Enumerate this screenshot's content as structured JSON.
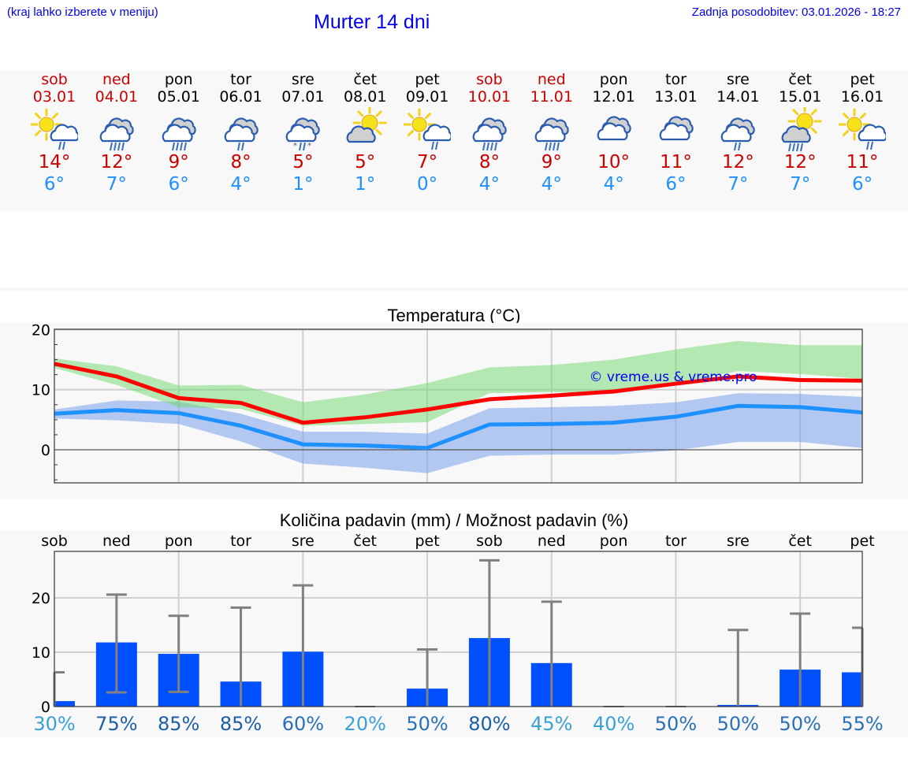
{
  "header": {
    "menu_hint": "(kraj lahko izberete v meniju)",
    "title": "Murter 14 dni",
    "last_update": "Zadnja posodobitev: 03.01.2026 - 18:27"
  },
  "colors": {
    "link_blue": "#0000ee",
    "weekend_red": "#cc0000",
    "tmax_red": "#cc0000",
    "tmin_blue": "#1e90ff",
    "line_max": "#ff0000",
    "line_min": "#1e90ff",
    "band_max": "#a8e6a8",
    "band_min": "#a9c4f2",
    "bar": "#0050ff",
    "errorbar": "#808080"
  },
  "days": [
    {
      "name": "sob",
      "date": "03.01",
      "weekend": true,
      "icon": "partly-sunny-light-rain-icon",
      "tmax": "14°",
      "tmin": "6°"
    },
    {
      "name": "ned",
      "date": "04.01",
      "weekend": true,
      "icon": "cloudy-rain-icon",
      "tmax": "12°",
      "tmin": "7°"
    },
    {
      "name": "pon",
      "date": "05.01",
      "weekend": false,
      "icon": "cloudy-rain-icon",
      "tmax": "9°",
      "tmin": "6°"
    },
    {
      "name": "tor",
      "date": "06.01",
      "weekend": false,
      "icon": "cloudy-light-rain-icon",
      "tmax": "8°",
      "tmin": "4°"
    },
    {
      "name": "sre",
      "date": "07.01",
      "weekend": false,
      "icon": "cloudy-sleet-icon",
      "tmax": "5°",
      "tmin": "1°"
    },
    {
      "name": "čet",
      "date": "08.01",
      "weekend": false,
      "icon": "sun-cloud-icon",
      "tmax": "5°",
      "tmin": "1°"
    },
    {
      "name": "pet",
      "date": "09.01",
      "weekend": false,
      "icon": "partly-sunny-light-rain-icon",
      "tmax": "7°",
      "tmin": "0°"
    },
    {
      "name": "sob",
      "date": "10.01",
      "weekend": true,
      "icon": "cloudy-rain-icon",
      "tmax": "8°",
      "tmin": "4°"
    },
    {
      "name": "ned",
      "date": "11.01",
      "weekend": true,
      "icon": "cloudy-rain-icon",
      "tmax": "9°",
      "tmin": "4°"
    },
    {
      "name": "pon",
      "date": "12.01",
      "weekend": false,
      "icon": "cloudy-icon",
      "tmax": "10°",
      "tmin": "4°"
    },
    {
      "name": "tor",
      "date": "13.01",
      "weekend": false,
      "icon": "cloudy-icon",
      "tmax": "11°",
      "tmin": "6°"
    },
    {
      "name": "sre",
      "date": "14.01",
      "weekend": false,
      "icon": "cloudy-light-rain-icon",
      "tmax": "12°",
      "tmin": "7°"
    },
    {
      "name": "čet",
      "date": "15.01",
      "weekend": false,
      "icon": "sun-cloud-rain-icon",
      "tmax": "12°",
      "tmin": "7°"
    },
    {
      "name": "pet",
      "date": "16.01",
      "weekend": false,
      "icon": "partly-sunny-light-rain-icon",
      "tmax": "11°",
      "tmin": "6°"
    }
  ],
  "temperature_chart": {
    "title": "Temperatura (°C)",
    "watermark": "© vreme.us & vreme.pro"
  },
  "precip_chart": {
    "title": "Količina padavin (mm) / Možnost padavin (%)",
    "day_labels": [
      "sob",
      "ned",
      "pon",
      "tor",
      "sre",
      "čet",
      "pet",
      "sob",
      "ned",
      "pon",
      "tor",
      "sre",
      "čet",
      "pet"
    ],
    "probabilities": [
      "30%",
      "75%",
      "85%",
      "85%",
      "60%",
      "20%",
      "50%",
      "80%",
      "45%",
      "40%",
      "50%",
      "50%",
      "50%",
      "55%"
    ]
  },
  "chart_data": [
    {
      "type": "line",
      "title": "Temperatura (°C)",
      "xlabel": "",
      "ylabel": "°C",
      "ylim": [
        -5.5,
        20
      ],
      "yticks": [
        0,
        10,
        20
      ],
      "grid": true,
      "x": [
        "03.01",
        "04.01",
        "05.01",
        "06.01",
        "07.01",
        "08.01",
        "09.01",
        "10.01",
        "11.01",
        "12.01",
        "13.01",
        "14.01",
        "15.01",
        "16.01"
      ],
      "series": [
        {
          "name": "Tmax",
          "color": "#ff0000",
          "values": [
            14.3,
            12.2,
            8.6,
            7.8,
            4.5,
            5.4,
            6.7,
            8.4,
            9.0,
            9.7,
            11.0,
            12.2,
            11.6,
            11.5
          ]
        },
        {
          "name": "Tmin",
          "color": "#1e90ff",
          "values": [
            6.0,
            6.6,
            6.1,
            4.0,
            0.9,
            0.7,
            0.3,
            4.2,
            4.3,
            4.5,
            5.5,
            7.3,
            7.1,
            6.2
          ]
        },
        {
          "name": "Tmax range upper",
          "values": [
            15.2,
            13.9,
            10.7,
            10.8,
            7.9,
            9.2,
            11.1,
            13.7,
            14.1,
            15.0,
            16.7,
            18.1,
            17.4,
            17.4
          ]
        },
        {
          "name": "Tmax range lower",
          "values": [
            13.6,
            10.8,
            7.1,
            6.8,
            4.0,
            4.3,
            4.6,
            9.4,
            9.6,
            9.3,
            10.9,
            13.1,
            12.6,
            11.8
          ]
        },
        {
          "name": "Tmin range upper",
          "values": [
            6.7,
            8.2,
            8.0,
            6.0,
            3.0,
            3.0,
            2.7,
            6.9,
            7.1,
            7.3,
            7.9,
            9.4,
            9.3,
            8.8
          ]
        },
        {
          "name": "Tmin range lower",
          "values": [
            5.2,
            4.9,
            4.3,
            1.4,
            -2.3,
            -3.0,
            -3.9,
            -1.0,
            -0.8,
            -0.8,
            -0.1,
            1.3,
            1.3,
            0.3
          ]
        }
      ],
      "annotations": [
        "© vreme.us & vreme.pro"
      ]
    },
    {
      "type": "bar",
      "title": "Količina padavin (mm) / Možnost padavin (%)",
      "xlabel": "",
      "ylabel": "mm",
      "ylim": [
        0,
        28.5
      ],
      "yticks": [
        0,
        10,
        20
      ],
      "grid": true,
      "categories": [
        "sob",
        "ned",
        "pon",
        "tor",
        "sre",
        "čet",
        "pet",
        "sob",
        "ned",
        "pon",
        "tor",
        "sre",
        "čet",
        "pet"
      ],
      "series": [
        {
          "name": "Količina padavin (mm)",
          "color": "#0050ff",
          "values": [
            1.0,
            11.8,
            9.7,
            4.6,
            10.1,
            0.0,
            3.3,
            12.6,
            8.0,
            0.0,
            0.0,
            0.3,
            6.8,
            6.3
          ]
        },
        {
          "name": "Error upper (mm)",
          "values": [
            6.3,
            20.6,
            16.7,
            18.2,
            22.3,
            0.0,
            10.5,
            26.9,
            19.3,
            0.0,
            0.0,
            14.1,
            17.1,
            14.5
          ]
        },
        {
          "name": "Error lower (mm)",
          "values": [
            0.0,
            2.6,
            2.7,
            0.0,
            0.0,
            0.0,
            0.0,
            0.0,
            0.0,
            0.0,
            0.0,
            0.0,
            0.0,
            0.0
          ]
        },
        {
          "name": "Možnost padavin (%)",
          "values": [
            30,
            75,
            85,
            85,
            60,
            20,
            50,
            80,
            45,
            40,
            50,
            50,
            50,
            55
          ]
        }
      ]
    }
  ]
}
